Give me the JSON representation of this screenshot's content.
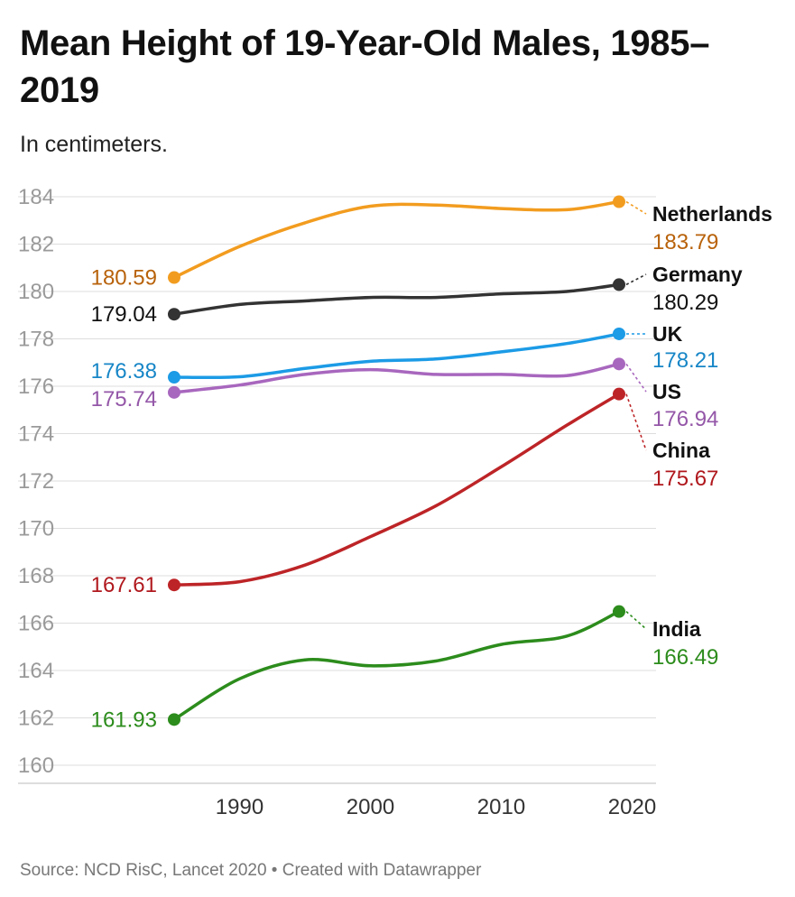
{
  "header": {
    "title": "Mean Height of 19-Year-Old Males, 1985–2019",
    "subtitle": "In centimeters."
  },
  "footer": {
    "text": "Source: NCD RisC, Lancet 2020 • Created with Datawrapper"
  },
  "chart_data": {
    "type": "line",
    "title": "Mean Height of 19-Year-Old Males, 1985–2019",
    "subtitle": "In centimeters.",
    "xlabel": "",
    "ylabel": "",
    "x_ticks": [
      1990,
      2000,
      2010,
      2020
    ],
    "y_ticks": [
      160,
      162,
      164,
      166,
      168,
      170,
      172,
      174,
      176,
      178,
      180,
      182,
      184
    ],
    "xlim": [
      1981.3,
      2022
    ],
    "ylim": [
      159.4,
      184.7
    ],
    "grid": true,
    "legend": "direct labels at line ends",
    "x": [
      1985,
      1990,
      1995,
      2000,
      2005,
      2010,
      2015,
      2019
    ],
    "series": [
      {
        "name": "Netherlands",
        "color": "#f29c1f",
        "label_color": "#b8620b",
        "start_label": "180.59",
        "end_label": "183.79",
        "values": [
          180.59,
          181.9,
          182.9,
          183.6,
          183.65,
          183.5,
          183.45,
          183.79
        ]
      },
      {
        "name": "Germany",
        "color": "#333333",
        "label_color": "#111111",
        "start_label": "179.04",
        "end_label": "180.29",
        "values": [
          179.04,
          179.45,
          179.6,
          179.75,
          179.75,
          179.9,
          180.0,
          180.29
        ]
      },
      {
        "name": "UK",
        "color": "#1c9be6",
        "label_color": "#1786c7",
        "start_label": "176.38",
        "end_label": "178.21",
        "values": [
          176.38,
          176.4,
          176.75,
          177.05,
          177.15,
          177.45,
          177.8,
          178.21
        ]
      },
      {
        "name": "US",
        "color": "#a867be",
        "label_color": "#9457a8",
        "start_label": "175.74",
        "end_label": "176.94",
        "values": [
          175.74,
          176.05,
          176.5,
          176.7,
          176.5,
          176.5,
          176.45,
          176.94
        ]
      },
      {
        "name": "China",
        "color": "#bd2427",
        "label_color": "#b0181d",
        "start_label": "167.61",
        "end_label": "175.67",
        "values": [
          167.61,
          167.75,
          168.45,
          169.65,
          170.95,
          172.6,
          174.35,
          175.67
        ]
      },
      {
        "name": "India",
        "color": "#2c8c1c",
        "label_color": "#2c8c1c",
        "start_label": "161.93",
        "end_label": "166.49",
        "values": [
          161.93,
          163.65,
          164.45,
          164.2,
          164.4,
          165.1,
          165.45,
          166.49
        ]
      }
    ]
  }
}
